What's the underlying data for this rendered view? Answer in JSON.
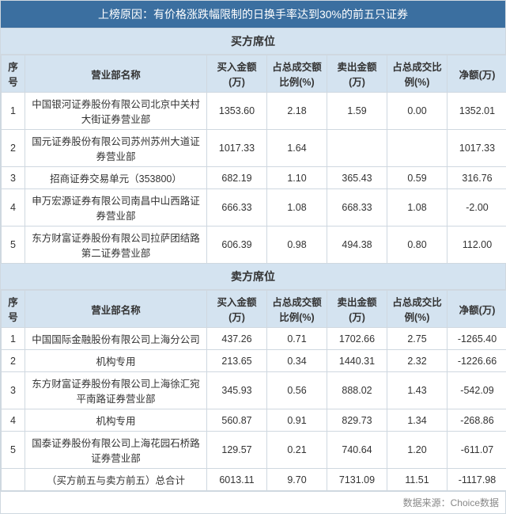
{
  "title": "上榜原因：有价格涨跌幅限制的日换手率达到30%的前五只证券",
  "buy_section": "买方席位",
  "sell_section": "卖方席位",
  "headers": {
    "seq": "序号",
    "name": "营业部名称",
    "buy_amt": "买入金额(万)",
    "buy_pct": "占总成交额比例(%)",
    "sell_amt": "卖出金额(万)",
    "sell_pct": "占总成交比例(%)",
    "net": "净额(万)"
  },
  "buy_rows": [
    {
      "seq": "1",
      "name": "中国银河证券股份有限公司北京中关村大街证券营业部",
      "buy_amt": "1353.60",
      "buy_pct": "2.18",
      "sell_amt": "1.59",
      "sell_pct": "0.00",
      "net": "1352.01"
    },
    {
      "seq": "2",
      "name": "国元证券股份有限公司苏州苏州大道证券营业部",
      "buy_amt": "1017.33",
      "buy_pct": "1.64",
      "sell_amt": "",
      "sell_pct": "",
      "net": "1017.33"
    },
    {
      "seq": "3",
      "name": "招商证券交易单元（353800）",
      "buy_amt": "682.19",
      "buy_pct": "1.10",
      "sell_amt": "365.43",
      "sell_pct": "0.59",
      "net": "316.76"
    },
    {
      "seq": "4",
      "name": "申万宏源证券有限公司南昌中山西路证券营业部",
      "buy_amt": "666.33",
      "buy_pct": "1.08",
      "sell_amt": "668.33",
      "sell_pct": "1.08",
      "net": "-2.00"
    },
    {
      "seq": "5",
      "name": "东方财富证券股份有限公司拉萨团结路第二证券营业部",
      "buy_amt": "606.39",
      "buy_pct": "0.98",
      "sell_amt": "494.38",
      "sell_pct": "0.80",
      "net": "112.00"
    }
  ],
  "sell_rows": [
    {
      "seq": "1",
      "name": "中国国际金融股份有限公司上海分公司",
      "buy_amt": "437.26",
      "buy_pct": "0.71",
      "sell_amt": "1702.66",
      "sell_pct": "2.75",
      "net": "-1265.40"
    },
    {
      "seq": "2",
      "name": "机构专用",
      "buy_amt": "213.65",
      "buy_pct": "0.34",
      "sell_amt": "1440.31",
      "sell_pct": "2.32",
      "net": "-1226.66"
    },
    {
      "seq": "3",
      "name": "东方财富证券股份有限公司上海徐汇宛平南路证券营业部",
      "buy_amt": "345.93",
      "buy_pct": "0.56",
      "sell_amt": "888.02",
      "sell_pct": "1.43",
      "net": "-542.09"
    },
    {
      "seq": "4",
      "name": "机构专用",
      "buy_amt": "560.87",
      "buy_pct": "0.91",
      "sell_amt": "829.73",
      "sell_pct": "1.34",
      "net": "-268.86"
    },
    {
      "seq": "5",
      "name": "国泰证券股份有限公司上海花园石桥路证券营业部",
      "buy_amt": "129.57",
      "buy_pct": "0.21",
      "sell_amt": "740.64",
      "sell_pct": "1.20",
      "net": "-611.07"
    }
  ],
  "total_row": {
    "seq": "",
    "name": "（买方前五与卖方前五）总合计",
    "buy_amt": "6013.11",
    "buy_pct": "9.70",
    "sell_amt": "7131.09",
    "sell_pct": "11.51",
    "net": "-1117.98"
  },
  "footer": "数据来源：Choice数据"
}
